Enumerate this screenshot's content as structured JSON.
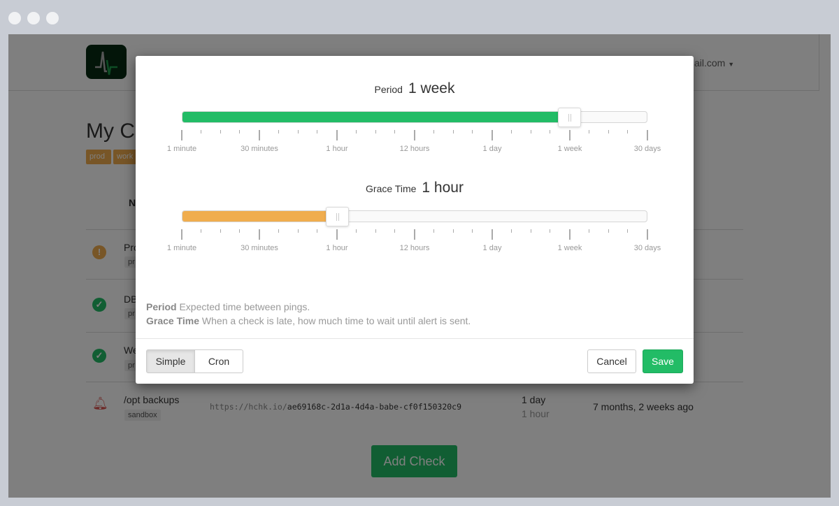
{
  "window": {
    "controls": [
      "close",
      "minimize",
      "maximize"
    ]
  },
  "background": {
    "account_label": "ail.com",
    "page_title": "My C",
    "tags": [
      "prod",
      "work"
    ],
    "table_header": "N",
    "rows": [
      {
        "status": "warning",
        "name": "Pro",
        "tag": "pr"
      },
      {
        "status": "up",
        "name": "DB",
        "tag": "pr"
      },
      {
        "status": "up",
        "name": "We",
        "tag": "pr"
      },
      {
        "status": "down",
        "name": "/opt backups",
        "tag": "sandbox",
        "url_prefix": "https://hchk.io/",
        "url_code": "ae69168c-2d1a-4d4a-babe-cf0f150320c9",
        "period": "1 day",
        "grace": "1 hour",
        "last_ping": "7 months, 2 weeks ago"
      }
    ],
    "add_check_label": "Add Check"
  },
  "modal": {
    "period": {
      "label": "Period",
      "value": "1 week",
      "color": "#22bc66"
    },
    "grace": {
      "label": "Grace Time",
      "value": "1 hour",
      "color": "#f0ad4e"
    },
    "tick_labels": [
      "1 minute",
      "30 minutes",
      "1 hour",
      "12 hours",
      "1 day",
      "1 week",
      "30 days"
    ],
    "desc_period_label": "Period",
    "desc_period_text": " Expected time between pings.",
    "desc_grace_label": "Grace Time",
    "desc_grace_text": " When a check is late, how much time to wait until alert is sent.",
    "mode_simple": "Simple",
    "mode_cron": "Cron",
    "active_mode": "Simple",
    "cancel_label": "Cancel",
    "save_label": "Save"
  }
}
